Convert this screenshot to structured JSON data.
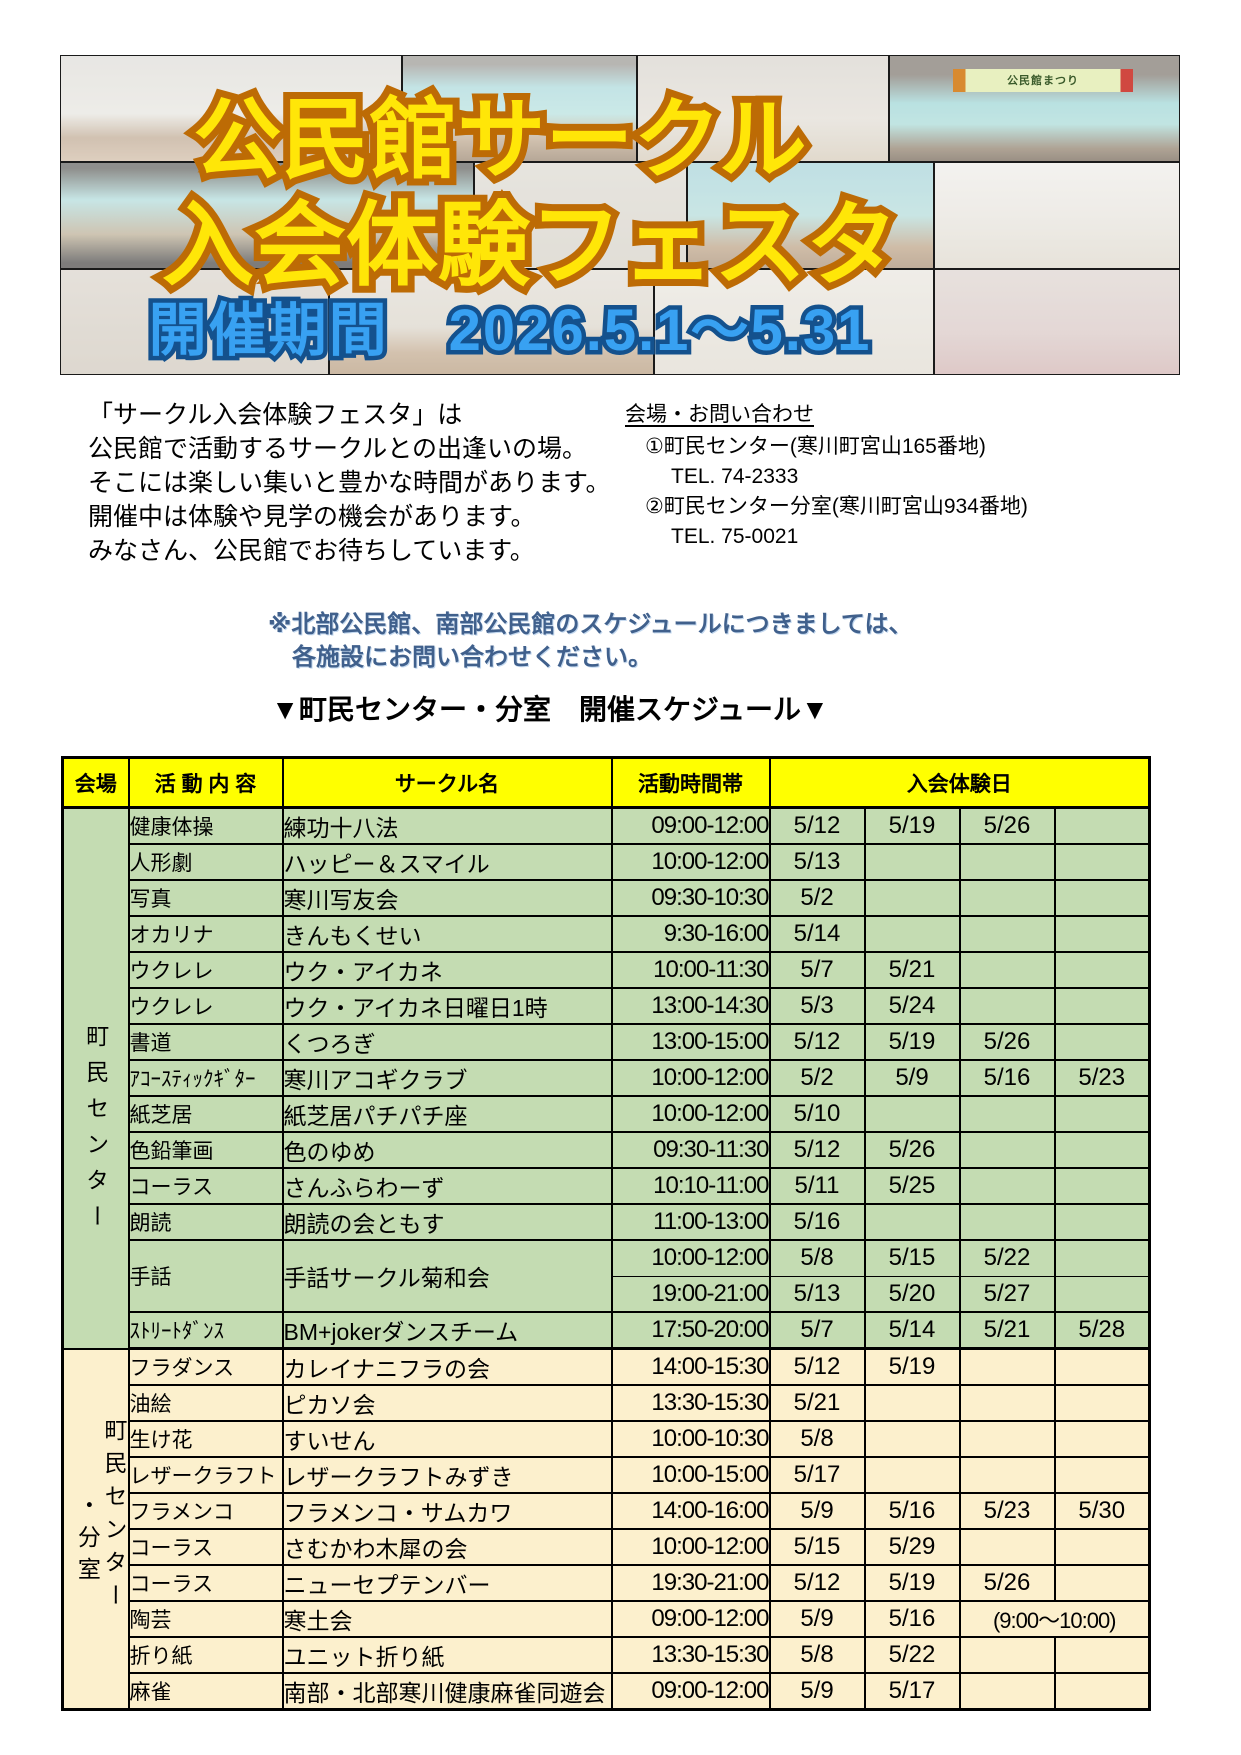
{
  "header": {
    "title_line1": "公民館サークル",
    "title_line2": "入会体験フェスタ",
    "period": "開催期間　2026.5.1～5.31",
    "banner_text": "公民館まつり",
    "photos": [
      "ikebana-display",
      "stage-performance",
      "exhibition-room",
      "stage-with-banner",
      "seated-musicians-stage",
      "framed-artwork-wall",
      "choir-on-stage",
      "pottery-display",
      "mirror-room",
      "hall-gathering",
      "calligraphy-wall",
      "pink-choir"
    ]
  },
  "intro": {
    "lines": [
      "「サークル入会体験フェスタ」は",
      "公民館で活動するサークルとの出逢いの場。",
      "そこには楽しい集いと豊かな時間があります。",
      "開催中は体験や見学の機会があります。",
      "みなさん、公民館でお待ちしています。"
    ]
  },
  "contact": {
    "heading": "会場・お問い合わせ",
    "entries": [
      {
        "title": "①町民センター(寒川町宮山165番地)",
        "tel": "TEL. 74-2333"
      },
      {
        "title": "②町民センター分室(寒川町宮山934番地)",
        "tel": "TEL. 75-0021"
      }
    ]
  },
  "notice": {
    "lines": [
      "※北部公民館、南部公民館のスケジュールにつきましては、",
      "　各施設にお問い合わせください。"
    ]
  },
  "schedule": {
    "title": "▼町民センター・分室　開催スケジュール▼",
    "headers": [
      "会場",
      "活 動 内 容",
      "サークル名",
      "活動時間帯",
      "入会体験日"
    ],
    "sections": [
      {
        "venue": "町民センター",
        "venue_sub": "",
        "color": "green",
        "rows": [
          {
            "activity": "健康体操",
            "circle": "練功十八法",
            "slots": [
              {
                "time": "09:00-12:00",
                "dates": [
                  "5/12",
                  "5/19",
                  "5/26",
                  null
                ]
              }
            ]
          },
          {
            "activity": "人形劇",
            "circle": "ハッピー＆スマイル",
            "slots": [
              {
                "time": "10:00-12:00",
                "dates": [
                  "5/13",
                  null,
                  null,
                  null
                ]
              }
            ]
          },
          {
            "activity": "写真",
            "circle": "寒川写友会",
            "slots": [
              {
                "time": "09:30-10:30",
                "dates": [
                  "5/2",
                  null,
                  null,
                  null
                ]
              }
            ]
          },
          {
            "activity": "オカリナ",
            "circle": "きんもくせい",
            "slots": [
              {
                "time": " 9:30-16:00",
                "dates": [
                  "5/14",
                  null,
                  null,
                  null
                ]
              }
            ]
          },
          {
            "activity": "ウクレレ",
            "circle": "ウク・アイカネ",
            "slots": [
              {
                "time": "10:00-11:30",
                "dates": [
                  "5/7",
                  "5/21",
                  null,
                  null
                ]
              }
            ]
          },
          {
            "activity": "ウクレレ",
            "circle": "ウク・アイカネ日曜日1時",
            "slots": [
              {
                "time": "13:00-14:30",
                "dates": [
                  "5/3",
                  "5/24",
                  null,
                  null
                ]
              }
            ]
          },
          {
            "activity": "書道",
            "circle": "くつろぎ",
            "slots": [
              {
                "time": "13:00-15:00",
                "dates": [
                  "5/12",
                  "5/19",
                  "5/26",
                  null
                ]
              }
            ]
          },
          {
            "activity": "ｱｺｰｽﾃｨｯｸｷﾞﾀｰ",
            "circle": "寒川アコギクラブ",
            "slots": [
              {
                "time": "10:00-12:00",
                "dates": [
                  "5/2",
                  "5/9",
                  "5/16",
                  "5/23"
                ]
              }
            ]
          },
          {
            "activity": "紙芝居",
            "circle": "紙芝居パチパチ座",
            "slots": [
              {
                "time": "10:00-12:00",
                "dates": [
                  "5/10",
                  null,
                  null,
                  null
                ]
              }
            ]
          },
          {
            "activity": "色鉛筆画",
            "circle": "色のゆめ",
            "slots": [
              {
                "time": "09:30-11:30",
                "dates": [
                  "5/12",
                  "5/26",
                  null,
                  null
                ]
              }
            ]
          },
          {
            "activity": "コーラス",
            "circle": "さんふらわーず",
            "slots": [
              {
                "time": "10:10-11:00",
                "dates": [
                  "5/11",
                  "5/25",
                  null,
                  null
                ]
              }
            ]
          },
          {
            "activity": "朗読",
            "circle": "朗読の会ともす",
            "slots": [
              {
                "time": "11:00-13:00",
                "dates": [
                  "5/16",
                  null,
                  null,
                  null
                ]
              }
            ]
          },
          {
            "activity": "手話",
            "circle": "手話サークル菊和会",
            "slots": [
              {
                "time": "10:00-12:00",
                "dates": [
                  "5/8",
                  "5/15",
                  "5/22",
                  null
                ]
              },
              {
                "time": "19:00-21:00",
                "dates": [
                  "5/13",
                  "5/20",
                  "5/27",
                  null
                ]
              }
            ]
          },
          {
            "activity": "ｽﾄﾘｰﾄﾀﾞﾝｽ",
            "circle": "BM+jokerダンスチーム",
            "slots": [
              {
                "time": "17:50-20:00",
                "dates": [
                  "5/7",
                  "5/14",
                  "5/21",
                  "5/28"
                ]
              }
            ]
          }
        ]
      },
      {
        "venue": "町民センター",
        "venue_sub": "・分室",
        "color": "cream",
        "rows": [
          {
            "activity": "フラダンス",
            "circle": "カレイナニフラの会",
            "slots": [
              {
                "time": "14:00-15:30",
                "dates": [
                  "5/12",
                  "5/19",
                  null,
                  null
                ]
              }
            ]
          },
          {
            "activity": "油絵",
            "circle": "ピカソ会",
            "slots": [
              {
                "time": "13:30-15:30",
                "dates": [
                  "5/21",
                  null,
                  null,
                  null
                ]
              }
            ]
          },
          {
            "activity": "生け花",
            "circle": "すいせん",
            "slots": [
              {
                "time": "10:00-10:30",
                "dates": [
                  "5/8",
                  null,
                  null,
                  null
                ]
              }
            ]
          },
          {
            "activity": "レザークラフト",
            "circle": "レザークラフトみずき",
            "slots": [
              {
                "time": "10:00-15:00",
                "dates": [
                  "5/17",
                  null,
                  null,
                  null
                ]
              }
            ]
          },
          {
            "activity": "フラメンコ",
            "circle": "フラメンコ・サムカワ",
            "slots": [
              {
                "time": "14:00-16:00",
                "dates": [
                  "5/9",
                  "5/16",
                  "5/23",
                  "5/30"
                ]
              }
            ]
          },
          {
            "activity": "コーラス",
            "circle": "さむかわ木犀の会",
            "slots": [
              {
                "time": "10:00-12:00",
                "dates": [
                  "5/15",
                  "5/29",
                  null,
                  null
                ]
              }
            ]
          },
          {
            "activity": "コーラス",
            "circle": "ニューセプテンバー",
            "slots": [
              {
                "time": "19:30-21:00",
                "dates": [
                  "5/12",
                  "5/19",
                  "5/26",
                  null
                ]
              }
            ]
          },
          {
            "activity": "陶芸",
            "circle": "寒土会",
            "slots": [
              {
                "time": "09:00-12:00",
                "dates": [
                  "5/9",
                  "5/16",
                  {
                    "text": "(9:00～10:00)",
                    "span": 2
                  }
                ]
              }
            ]
          },
          {
            "activity": "折り紙",
            "circle": "ユニット折り紙",
            "slots": [
              {
                "time": "13:30-15:30",
                "dates": [
                  "5/8",
                  "5/22",
                  null,
                  null
                ]
              }
            ]
          },
          {
            "activity": "麻雀",
            "circle": "南部・北部寒川健康麻雀同遊会",
            "slots": [
              {
                "time": "09:00-12:00",
                "dates": [
                  "5/9",
                  "5/17",
                  null,
                  null
                ]
              }
            ]
          }
        ]
      }
    ]
  },
  "colors": {
    "header_yellow": "#ffff00",
    "section_green": "#c4dcb2",
    "section_cream": "#fcf0cd",
    "title_fill": "#ffe608",
    "title_outline": "#bd6b05",
    "period_fill": "#38a1f2",
    "period_outline": "#14518d",
    "notice_blue": "#40608c"
  }
}
